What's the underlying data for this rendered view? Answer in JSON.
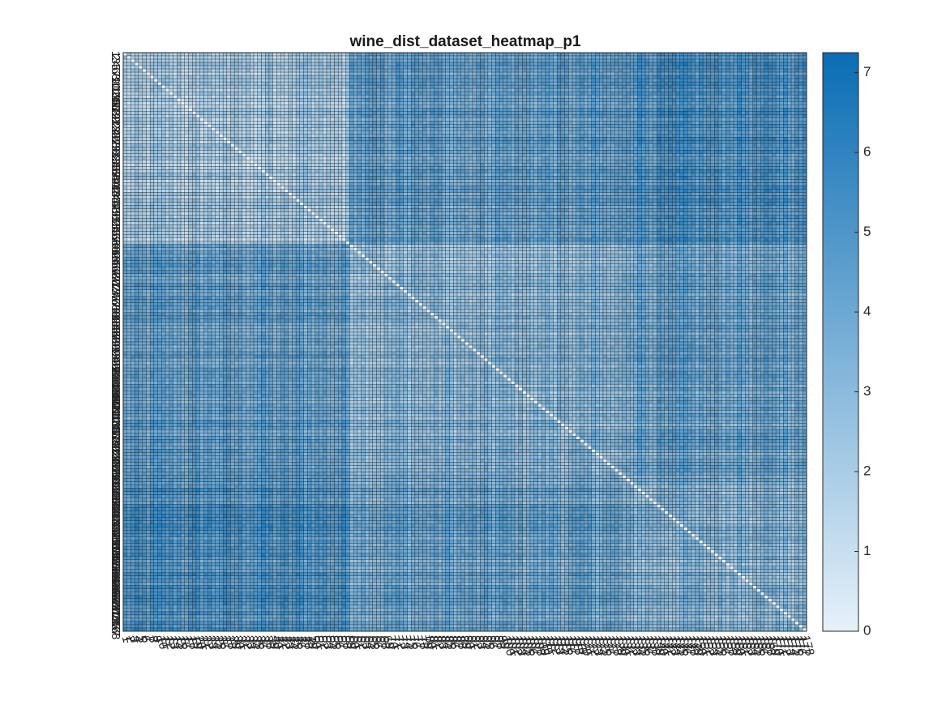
{
  "chart_data": {
    "type": "heatmap",
    "title": "wine_dist_dataset_heatmap_p1",
    "rows": 178,
    "cols": 178,
    "row_labels_range": [
      1,
      178
    ],
    "col_labels_range": [
      1,
      178
    ],
    "value_range": [
      0,
      7.25
    ],
    "colorbar": {
      "ticks": [
        0,
        1,
        2,
        3,
        4,
        5,
        6,
        7
      ],
      "low_color": "#e6f1f9",
      "high_color": "#0a6db4",
      "placement": "right"
    },
    "grid": true,
    "cell_edge_color": "#222222",
    "class_blocks": [
      {
        "start": 1,
        "end": 59
      },
      {
        "start": 60,
        "end": 130
      },
      {
        "start": 131,
        "end": 178
      }
    ]
  }
}
